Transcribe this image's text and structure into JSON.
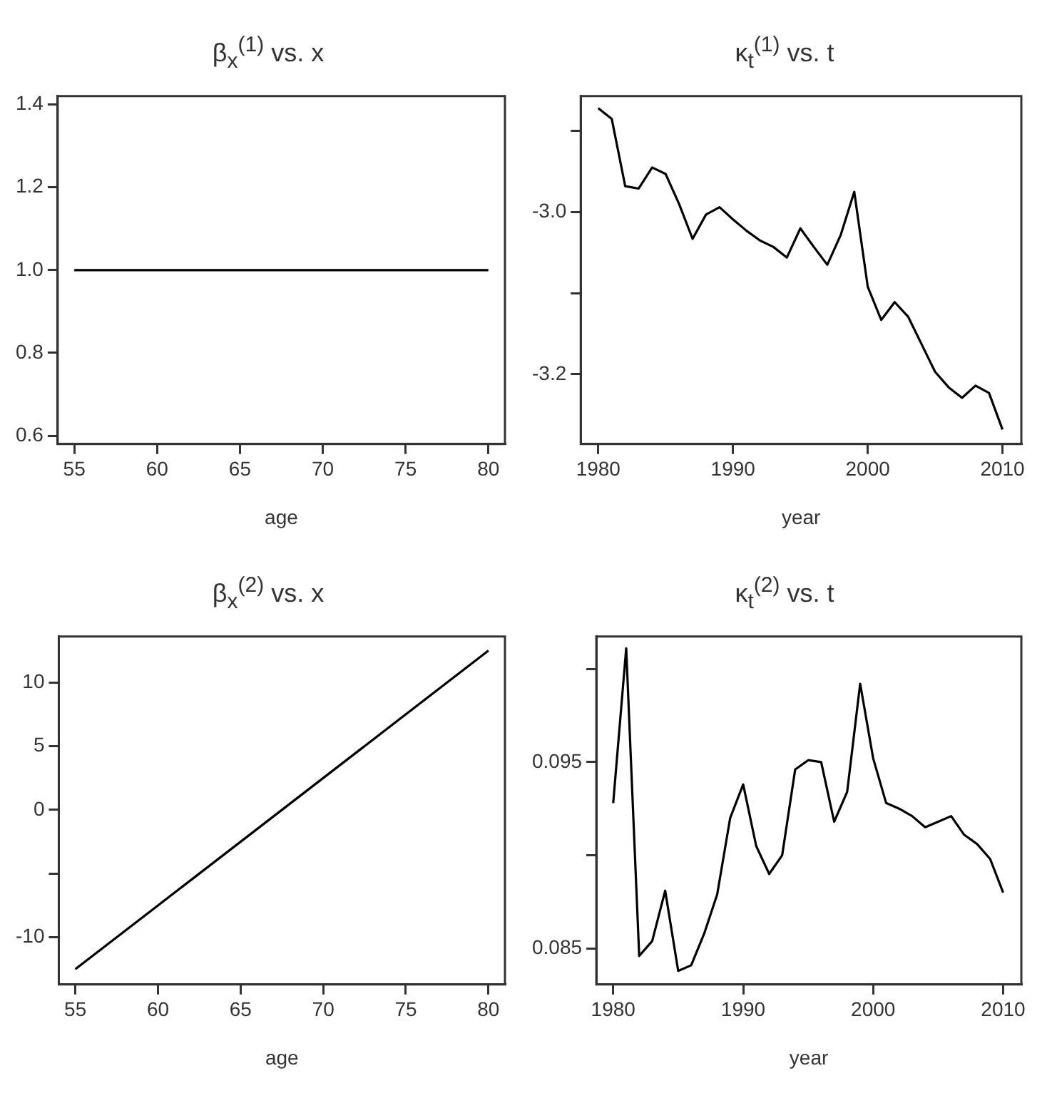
{
  "chart_data": [
    {
      "type": "line",
      "title": "β$_{x}$$^{(1)}$ vs. x",
      "xlabel": "age",
      "x": [
        55,
        80
      ],
      "values": [
        1,
        1
      ],
      "color": "#000000",
      "marker": "none",
      "xlim": [
        54,
        81
      ],
      "xticks": [
        55,
        60,
        65,
        70,
        75,
        80
      ],
      "ylim": [
        0.58,
        1.42
      ],
      "yticks": [
        0.6,
        0.8,
        {
          "value": 1,
          "label": "1.0"
        },
        1.2,
        1.4
      ]
    },
    {
      "type": "line",
      "title": "κ$_{t}$$^{(1)}$ vs. t",
      "xlabel": "year",
      "x": [
        1980,
        1981,
        1982,
        1983,
        1984,
        1985,
        1986,
        1987,
        1988,
        1989,
        1990,
        1991,
        1992,
        1993,
        1994,
        1995,
        1996,
        1997,
        1998,
        1999,
        2000,
        2001,
        2002,
        2003,
        2004,
        2005,
        2006,
        2007,
        2008,
        2009,
        2010
      ],
      "values": [
        -2.872,
        -2.885,
        -2.968,
        -2.971,
        -2.945,
        -2.953,
        -2.99,
        -3.033,
        -3.003,
        -2.994,
        -3.009,
        -3.023,
        -3.035,
        -3.043,
        -3.056,
        -3.02,
        -3.043,
        -3.065,
        -3.028,
        -2.975,
        -3.092,
        -3.133,
        -3.111,
        -3.129,
        -3.163,
        -3.197,
        -3.216,
        -3.229,
        -3.214,
        -3.223,
        -3.268
      ],
      "color": "#000000",
      "marker": "none",
      "xlim": [
        1978.7,
        2011.4
      ],
      "xticks": [
        1980,
        1990,
        2000,
        2010
      ],
      "ylim": [
        -3.286,
        -2.857
      ],
      "yticks": [
        {
          "value": -3.2,
          "label": "-3.2"
        },
        {
          "value": -3.1,
          "label": null
        },
        {
          "value": -3.0,
          "label": "-3.0"
        },
        {
          "value": -2.9,
          "label": null
        }
      ]
    },
    {
      "type": "line",
      "title": "β$_{x}$$^{(2)}$ vs. x",
      "xlabel": "age",
      "x": [
        55,
        80
      ],
      "values": [
        -12.5,
        12.5
      ],
      "color": "#000000",
      "marker": "none",
      "xlim": [
        54,
        81
      ],
      "xticks": [
        55,
        60,
        65,
        70,
        75,
        80
      ],
      "ylim": [
        -13.7,
        13.6
      ],
      "yticks": [
        -10,
        {
          "value": -5,
          "label": null
        },
        0,
        5,
        10
      ]
    },
    {
      "type": "line",
      "title": "κ$_{t}$$^{(2)}$ vs. t",
      "xlabel": "year",
      "x": [
        1980,
        1981,
        1982,
        1983,
        1984,
        1985,
        1986,
        1987,
        1988,
        1989,
        1990,
        1991,
        1992,
        1993,
        1994,
        1995,
        1996,
        1997,
        1998,
        1999,
        2000,
        2001,
        2002,
        2003,
        2004,
        2005,
        2006,
        2007,
        2008,
        2009,
        2010
      ],
      "values": [
        0.0928,
        0.1011,
        0.0846,
        0.0854,
        0.0881,
        0.0838,
        0.0841,
        0.0858,
        0.0879,
        0.092,
        0.0938,
        0.0905,
        0.089,
        0.09,
        0.0946,
        0.0951,
        0.095,
        0.0918,
        0.0934,
        0.0992,
        0.0952,
        0.0928,
        0.0925,
        0.0921,
        0.0915,
        0.0918,
        0.0921,
        0.0911,
        0.0906,
        0.0898,
        0.088
      ],
      "color": "#000000",
      "marker": "none",
      "xlim": [
        1978.7,
        2011.4
      ],
      "xticks": [
        1980,
        1990,
        2000,
        2010
      ],
      "ylim": [
        0.08307,
        0.10173
      ],
      "yticks": [
        {
          "value": 0.085,
          "label": "0.085"
        },
        {
          "value": 0.09,
          "label": null
        },
        {
          "value": 0.095,
          "label": "0.095"
        },
        {
          "value": 0.1,
          "label": null
        }
      ]
    }
  ]
}
